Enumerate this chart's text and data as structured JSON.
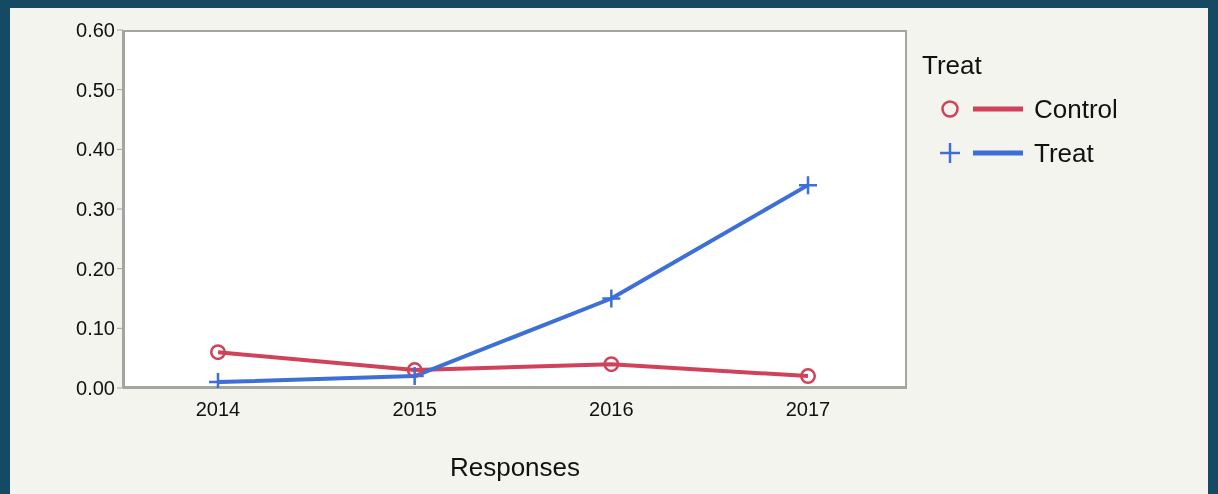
{
  "chart_data": {
    "type": "line",
    "xlabel": "Responses",
    "legend_title": "Treat",
    "categories": [
      "2014",
      "2015",
      "2016",
      "2017"
    ],
    "series": [
      {
        "name": "Control",
        "color": "#d0425a",
        "marker": "circle",
        "values": [
          0.06,
          0.03,
          0.04,
          0.02
        ]
      },
      {
        "name": "Treat",
        "color": "#3d6fd6",
        "marker": "cross",
        "values": [
          0.01,
          0.02,
          0.15,
          0.34
        ]
      }
    ],
    "ylim": [
      0,
      0.6
    ],
    "yticks": [
      {
        "value": 0,
        "label": "0.00"
      },
      {
        "value": 0.1,
        "label": "0.10"
      },
      {
        "value": 0.2,
        "label": "0.20"
      },
      {
        "value": 0.3,
        "label": "0.30"
      },
      {
        "value": 0.4,
        "label": "0.40"
      },
      {
        "value": 0.5,
        "label": "0.50"
      },
      {
        "value": 0.6,
        "label": "0.60"
      }
    ],
    "grid": false,
    "legend": "right",
    "line_style": "solid"
  }
}
